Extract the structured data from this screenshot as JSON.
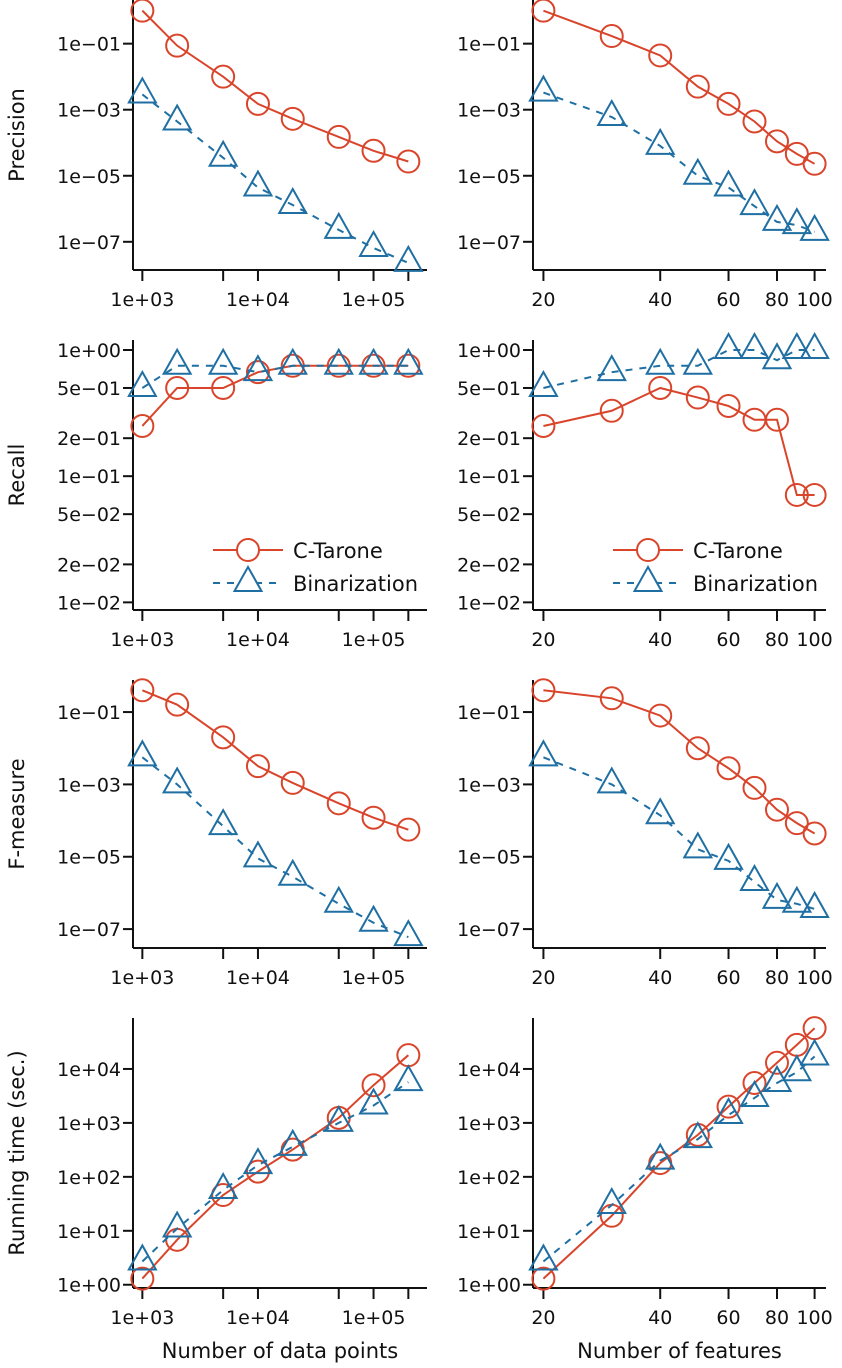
{
  "colors": {
    "c_tarone": "#d9452b",
    "binarization": "#1f6fa3",
    "axis": "#111111"
  },
  "legend": {
    "c_tarone": "C-Tarone",
    "binarization": "Binarization"
  },
  "chart_data": [
    {
      "type": "line",
      "panel": "precision-vs-data-points",
      "ylabel": "Precision",
      "xlabel": "",
      "xscale": "log",
      "yscale": "log",
      "xlim": [
        830,
        290000
      ],
      "ylim": [
        1.4e-08,
        2.1
      ],
      "xticks": [
        1000,
        5000,
        10000,
        50000,
        100000,
        200000
      ],
      "xtick_labels": {
        "1000": "1e+03",
        "10000": "1e+04",
        "100000": "1e+05"
      },
      "yticks": [
        0.1,
        0.001,
        1e-05,
        1e-07
      ],
      "ytick_labels": [
        "1e−01",
        "1e−03",
        "1e−05",
        "1e−07"
      ],
      "x": [
        1000,
        2000,
        5000,
        10000,
        20000,
        50000,
        100000,
        200000
      ],
      "series": [
        {
          "name": "C-Tarone",
          "values": [
            1.0,
            0.087,
            0.01,
            0.0015,
            0.00053,
            0.00015,
            5.7e-05,
            2.7e-05
          ]
        },
        {
          "name": "Binarization",
          "values": [
            0.0029,
            0.00044,
            3.5e-05,
            4.4e-06,
            1.3e-06,
            2.3e-07,
            6.5e-08,
            2.3e-08
          ]
        }
      ]
    },
    {
      "type": "line",
      "panel": "precision-vs-features",
      "ylabel": "",
      "xlabel": "",
      "xscale": "log",
      "yscale": "log",
      "xlim": [
        18.8,
        107
      ],
      "ylim": [
        1.4e-08,
        2.1
      ],
      "xticks": [
        20,
        40,
        60,
        80,
        100
      ],
      "xtick_labels": {
        "20": "20",
        "40": "40",
        "60": "60",
        "80": "80",
        "100": "100"
      },
      "yticks": [
        0.1,
        0.001,
        1e-05,
        1e-07
      ],
      "ytick_labels": [
        "1e−01",
        "1e−03",
        "1e−05",
        "1e−07"
      ],
      "x": [
        20,
        30,
        40,
        50,
        60,
        70,
        80,
        90,
        100
      ],
      "series": [
        {
          "name": "C-Tarone",
          "values": [
            1.0,
            0.17,
            0.044,
            0.005,
            0.0015,
            0.00044,
            0.00011,
            4.6e-05,
            2.3e-05
          ]
        },
        {
          "name": "Binarization",
          "values": [
            0.0033,
            0.0006,
            8e-05,
            1e-05,
            4.4e-06,
            1.2e-06,
            4e-07,
            3.2e-07,
            2e-07
          ]
        }
      ]
    },
    {
      "type": "line",
      "panel": "recall-vs-data-points",
      "ylabel": "Recall",
      "xlabel": "",
      "xscale": "log",
      "yscale": "log",
      "xlim": [
        830,
        290000
      ],
      "ylim": [
        0.0087,
        1.2
      ],
      "legend": "bottom-right",
      "xticks": [
        1000,
        5000,
        10000,
        50000,
        100000,
        200000
      ],
      "xtick_labels": {
        "1000": "1e+03",
        "10000": "1e+04",
        "100000": "1e+05"
      },
      "yticks": [
        1,
        0.5,
        0.2,
        0.1,
        0.05,
        0.02,
        0.01
      ],
      "ytick_labels": [
        "1e+00",
        "5e−01",
        "2e−01",
        "1e−01",
        "5e−02",
        "2e−02",
        "1e−02"
      ],
      "x": [
        1000,
        2000,
        5000,
        10000,
        20000,
        50000,
        100000,
        200000
      ],
      "series": [
        {
          "name": "C-Tarone",
          "values": [
            0.25,
            0.5,
            0.5,
            0.667,
            0.75,
            0.75,
            0.75,
            0.75
          ]
        },
        {
          "name": "Binarization",
          "values": [
            0.5,
            0.75,
            0.75,
            0.667,
            0.75,
            0.75,
            0.75,
            0.75
          ]
        }
      ]
    },
    {
      "type": "line",
      "panel": "recall-vs-features",
      "ylabel": "",
      "xlabel": "",
      "xscale": "log",
      "yscale": "log",
      "xlim": [
        18.8,
        107
      ],
      "ylim": [
        0.0087,
        1.2
      ],
      "legend": "bottom-right",
      "xticks": [
        20,
        40,
        60,
        80,
        100
      ],
      "xtick_labels": {
        "20": "20",
        "40": "40",
        "60": "60",
        "80": "80",
        "100": "100"
      },
      "yticks": [
        1,
        0.5,
        0.2,
        0.1,
        0.05,
        0.02,
        0.01
      ],
      "ytick_labels": [
        "1e+00",
        "5e−01",
        "2e−01",
        "1e−01",
        "5e−02",
        "2e−02",
        "1e−02"
      ],
      "x": [
        20,
        30,
        40,
        50,
        60,
        70,
        80,
        90,
        100
      ],
      "series": [
        {
          "name": "C-Tarone",
          "values": [
            0.25,
            0.33,
            0.5,
            0.42,
            0.36,
            0.28,
            0.28,
            0.071,
            0.071
          ]
        },
        {
          "name": "Binarization",
          "values": [
            0.5,
            0.667,
            0.75,
            0.75,
            1.0,
            1.0,
            0.83,
            1.0,
            1.0
          ]
        }
      ]
    },
    {
      "type": "line",
      "panel": "fmeasure-vs-data-points",
      "ylabel": "F-measure",
      "xlabel": "",
      "xscale": "log",
      "yscale": "log",
      "xlim": [
        830,
        290000
      ],
      "ylim": [
        3e-08,
        0.77
      ],
      "xticks": [
        1000,
        5000,
        10000,
        50000,
        100000,
        200000
      ],
      "xtick_labels": {
        "1000": "1e+03",
        "10000": "1e+04",
        "100000": "1e+05"
      },
      "yticks": [
        0.1,
        0.001,
        1e-05,
        1e-07
      ],
      "ytick_labels": [
        "1e−01",
        "1e−03",
        "1e−05",
        "1e−07"
      ],
      "x": [
        1000,
        2000,
        5000,
        10000,
        20000,
        50000,
        100000,
        200000
      ],
      "series": [
        {
          "name": "C-Tarone",
          "values": [
            0.4,
            0.16,
            0.02,
            0.0032,
            0.0011,
            0.0003,
            0.00012,
            5.6e-05
          ]
        },
        {
          "name": "Binarization",
          "values": [
            0.0056,
            0.001,
            7e-05,
            9e-06,
            2.8e-06,
            5e-07,
            1.5e-07,
            6e-08
          ]
        }
      ]
    },
    {
      "type": "line",
      "panel": "fmeasure-vs-features",
      "ylabel": "",
      "xlabel": "",
      "xscale": "log",
      "yscale": "log",
      "xlim": [
        18.8,
        107
      ],
      "ylim": [
        3e-08,
        0.77
      ],
      "xticks": [
        20,
        40,
        60,
        80,
        100
      ],
      "xtick_labels": {
        "20": "20",
        "40": "40",
        "60": "60",
        "80": "80",
        "100": "100"
      },
      "yticks": [
        0.1,
        0.001,
        1e-05,
        1e-07
      ],
      "ytick_labels": [
        "1e−01",
        "1e−03",
        "1e−05",
        "1e−07"
      ],
      "x": [
        20,
        30,
        40,
        50,
        60,
        70,
        80,
        90,
        100
      ],
      "series": [
        {
          "name": "C-Tarone",
          "values": [
            0.4,
            0.24,
            0.08,
            0.01,
            0.0028,
            0.0008,
            0.0002,
            8.5e-05,
            4.4e-05
          ]
        },
        {
          "name": "Binarization",
          "values": [
            0.0056,
            0.001,
            0.00014,
            1.6e-05,
            7.7e-06,
            2e-06,
            6.4e-07,
            5e-07,
            3.6e-07
          ]
        }
      ]
    },
    {
      "type": "line",
      "panel": "runtime-vs-data-points",
      "ylabel": "Running time (sec.)",
      "xlabel": "Number of data points",
      "xscale": "log",
      "yscale": "log",
      "xlim": [
        830,
        290000
      ],
      "ylim": [
        0.87,
        88000
      ],
      "xticks": [
        1000,
        5000,
        10000,
        50000,
        100000,
        200000
      ],
      "xtick_labels": {
        "1000": "1e+03",
        "10000": "1e+04",
        "100000": "1e+05"
      },
      "yticks": [
        1,
        10,
        100,
        1000,
        10000
      ],
      "ytick_labels": [
        "1e+00",
        "1e+01",
        "1e+02",
        "1e+03",
        "1e+04"
      ],
      "x": [
        1000,
        2000,
        5000,
        10000,
        20000,
        50000,
        100000,
        200000
      ],
      "series": [
        {
          "name": "C-Tarone",
          "values": [
            1.3,
            6.8,
            46,
            125,
            320,
            1240,
            5000,
            18000
          ]
        },
        {
          "name": "Binarization",
          "values": [
            2.7,
            11,
            57,
            165,
            360,
            1000,
            2100,
            5700
          ]
        }
      ]
    },
    {
      "type": "line",
      "panel": "runtime-vs-features",
      "ylabel": "",
      "xlabel": "Number of features",
      "xscale": "log",
      "yscale": "log",
      "xlim": [
        18.8,
        107
      ],
      "ylim": [
        0.87,
        88000
      ],
      "xticks": [
        20,
        40,
        60,
        80,
        100
      ],
      "xtick_labels": {
        "20": "20",
        "40": "40",
        "60": "60",
        "80": "80",
        "100": "100"
      },
      "yticks": [
        1,
        10,
        100,
        1000,
        10000
      ],
      "ytick_labels": [
        "1e+00",
        "1e+01",
        "1e+02",
        "1e+03",
        "1e+04"
      ],
      "x": [
        20,
        30,
        40,
        50,
        60,
        70,
        80,
        90,
        100
      ],
      "series": [
        {
          "name": "C-Tarone",
          "values": [
            1.3,
            19,
            180,
            600,
            2000,
            5500,
            13000,
            28000,
            57000
          ]
        },
        {
          "name": "Binarization",
          "values": [
            2.7,
            30,
            200,
            500,
            1400,
            2900,
            5500,
            8700,
            17000
          ]
        }
      ]
    }
  ]
}
